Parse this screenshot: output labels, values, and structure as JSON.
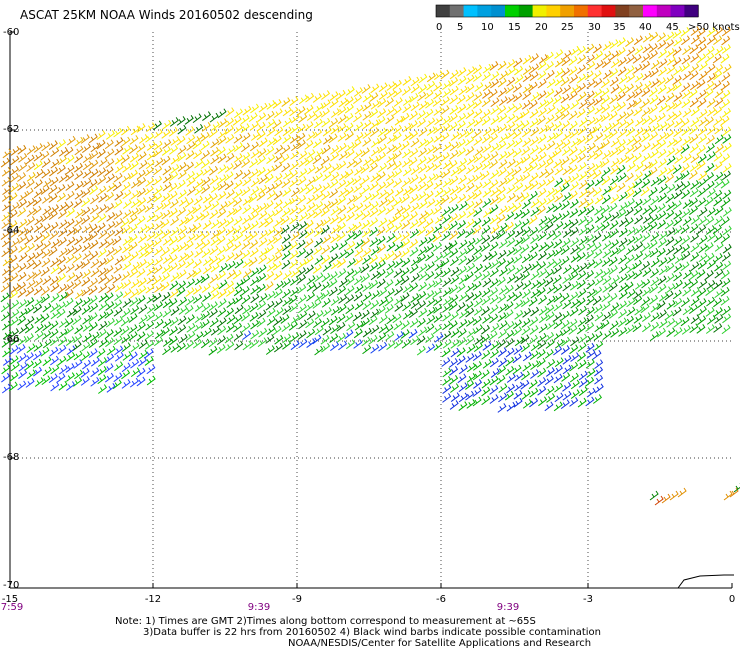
{
  "title": "ASCAT 25KM NOAA Winds 20160502 descending",
  "legend": {
    "colors": [
      "#404040",
      "#707070",
      "#00c0ff",
      "#00a0e0",
      "#0090d0",
      "#00d000",
      "#00a000",
      "#f0f000",
      "#ffd000",
      "#f0a000",
      "#f07000",
      "#ff3030",
      "#e01010",
      "#804020",
      "#906040",
      "#ff00ff",
      "#c000c0",
      "#8000c0",
      "#400080"
    ],
    "labels": [
      "0",
      "5",
      "10",
      "15",
      "20",
      "25",
      "30",
      "35",
      "40",
      "45",
      ">50 knots"
    ]
  },
  "lat_labels": [
    "-60",
    "-62",
    "-64",
    "-66",
    "-68",
    "-70"
  ],
  "lon_labels": [
    "-15",
    "-12",
    "-9",
    "-6",
    "-3",
    "0"
  ],
  "time_labels": [
    "7:59",
    "9:39",
    "9:39"
  ],
  "notes": [
    "Note: 1) Times are GMT 2)Times along bottom correspond to measurement at ~65S",
    "3)Data buffer is 22 hrs from 20160502 4) Black wind barbs indicate possible contamination",
    "NOAA/NESDIS/Center for Satellite Applications and Research"
  ]
}
